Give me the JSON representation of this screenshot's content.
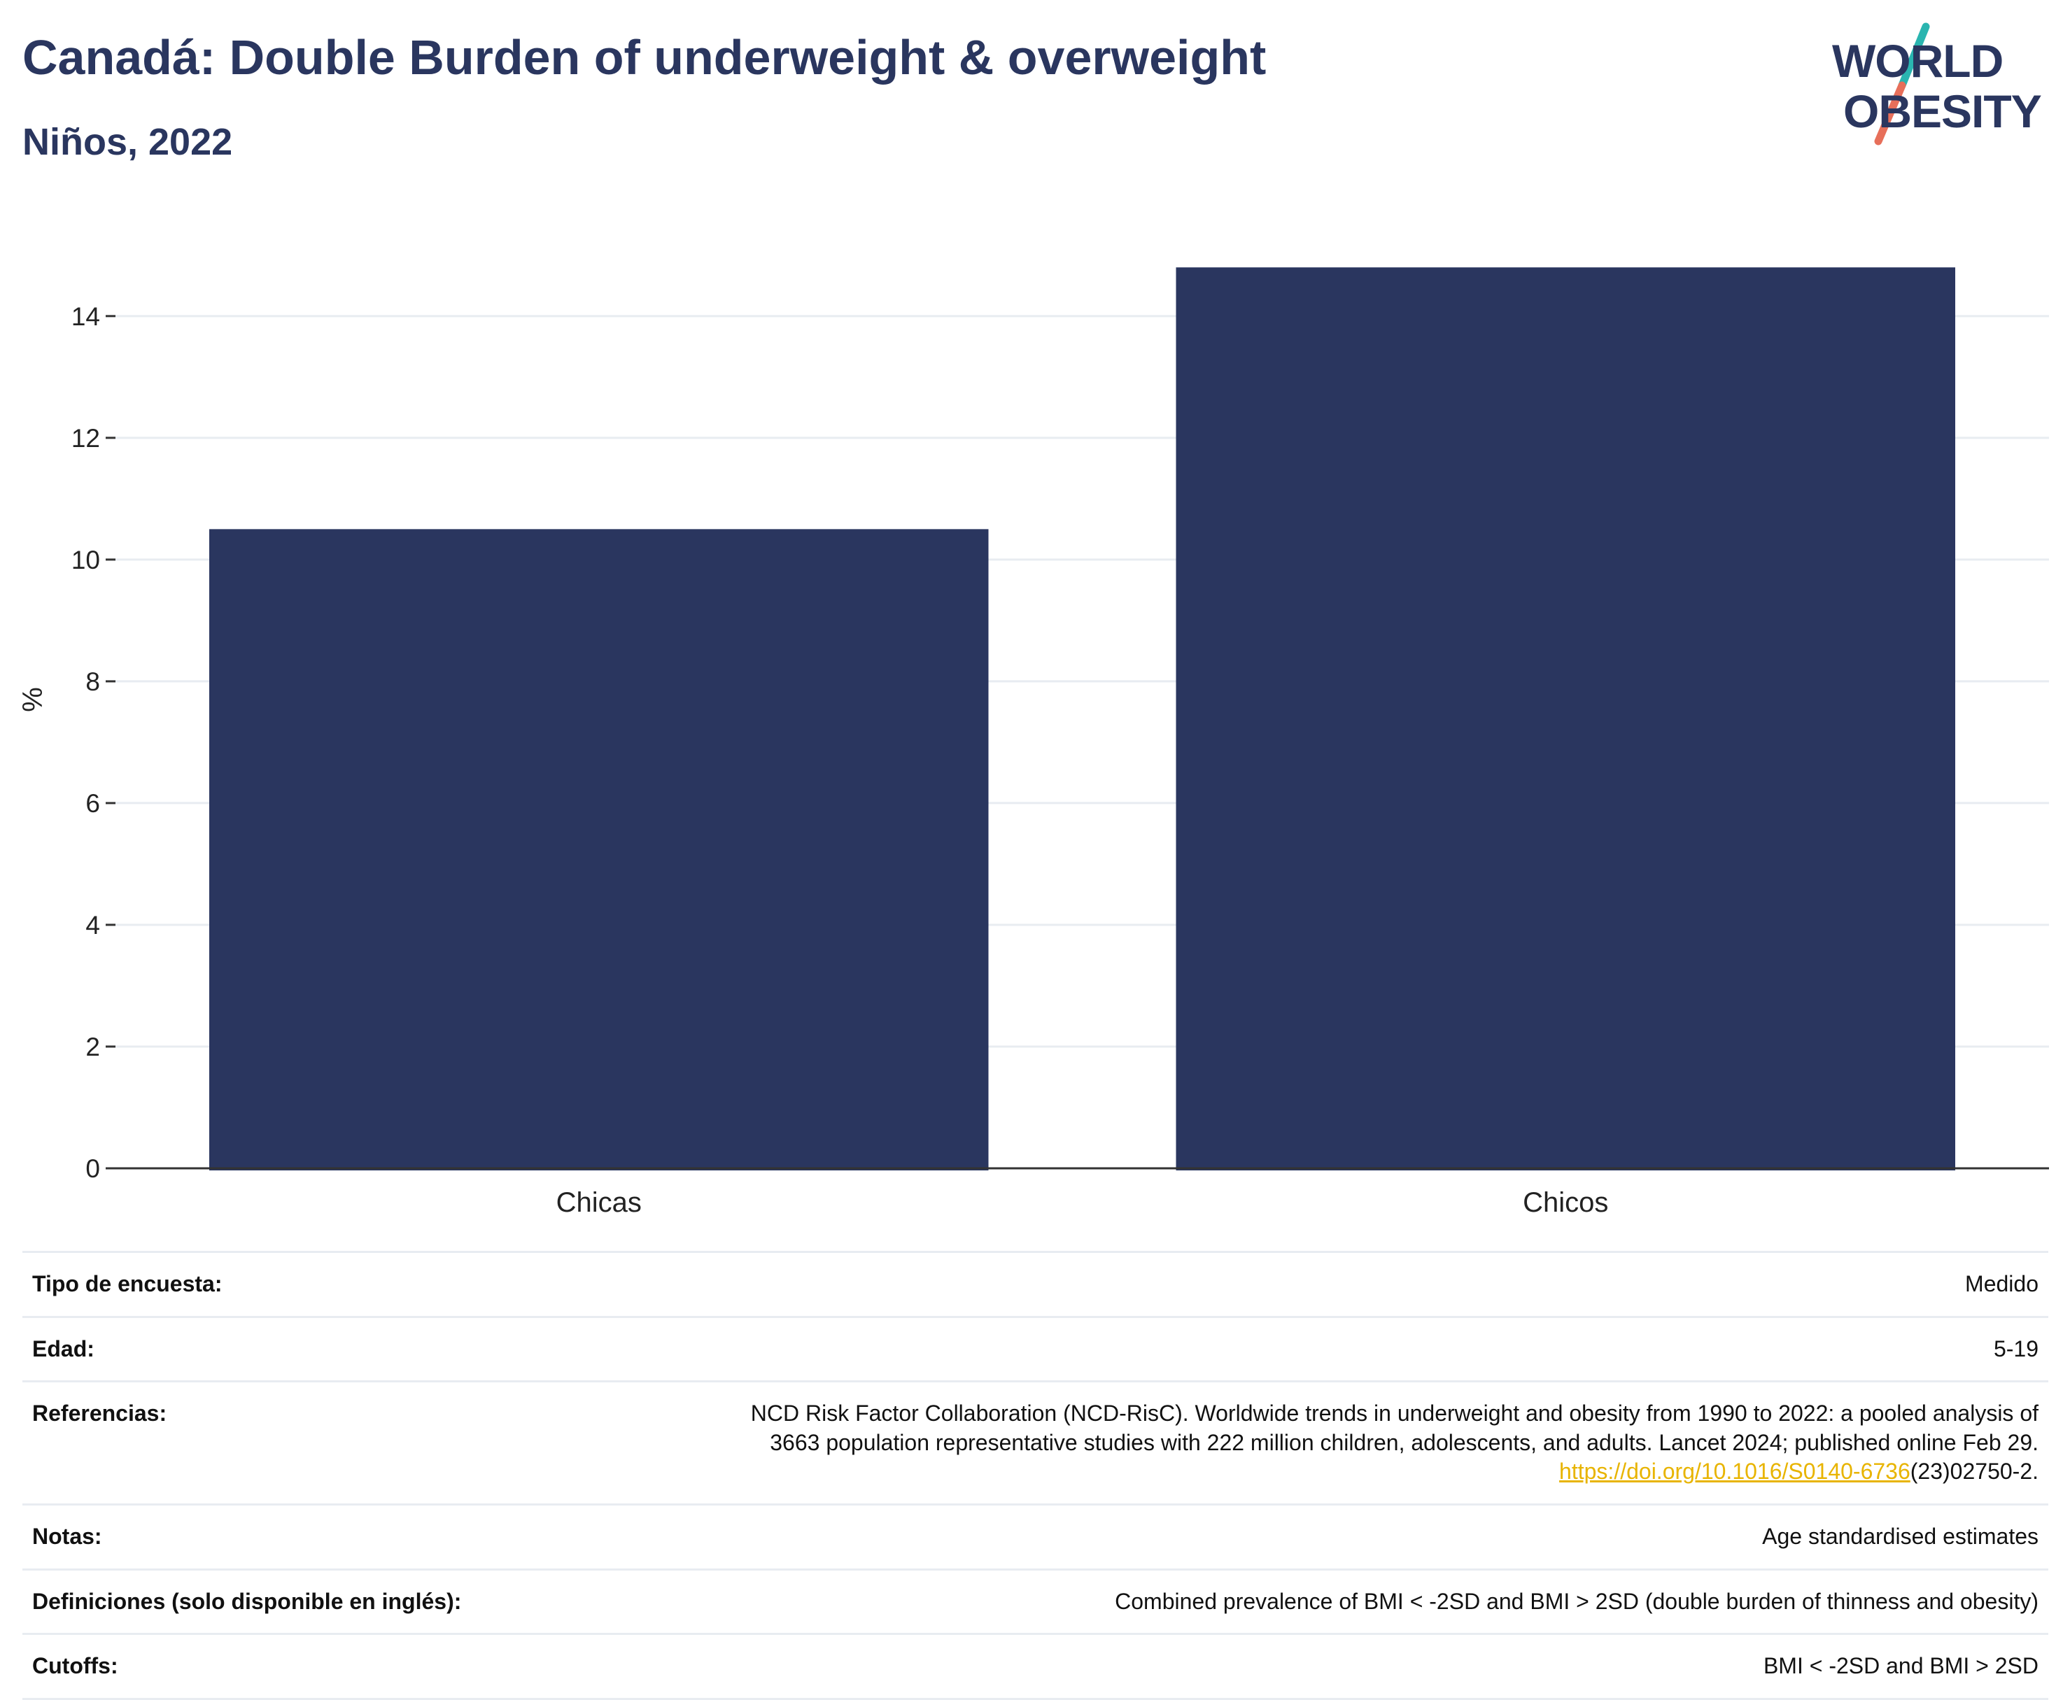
{
  "header": {
    "title": "Canadá: Double Burden of underweight & overweight",
    "subtitle": "Niños, 2022"
  },
  "logo": {
    "line1": "WORLD",
    "line2": "OBESITY",
    "text_color": "#2a365f",
    "slash_top_color": "#2ab5b0",
    "slash_bottom_color": "#e76f5a"
  },
  "colors": {
    "bar": "#2a365f",
    "grid": "#e8ecf1",
    "axis": "#333333",
    "link": "#e8b400"
  },
  "chart_data": {
    "type": "bar",
    "categories": [
      "Chicas",
      "Chicos"
    ],
    "values": [
      10.5,
      14.8
    ],
    "ylabel": "%",
    "xlabel": "",
    "ylim": [
      0,
      15.4
    ],
    "yticks": [
      0,
      2,
      4,
      6,
      8,
      10,
      12,
      14
    ],
    "grid": true,
    "legend": "none"
  },
  "metadata": {
    "rows": [
      {
        "label": "Tipo de encuesta:",
        "value": "Medido"
      },
      {
        "label": "Edad:",
        "value": "5-19"
      },
      {
        "label": "Referencias:",
        "value_line1": "NCD Risk Factor Collaboration (NCD-RisC). Worldwide trends in underweight and obesity from 1990 to 2022: a pooled analysis of",
        "value_line2": "3663 population representative studies with 222 million children, adolescents, and adults. Lancet 2024; published online Feb 29.",
        "link_text": "https://doi.org/10.1016/S0140-6736",
        "link_suffix": "(23)02750-2."
      },
      {
        "label": "Notas:",
        "value": "Age standardised estimates"
      },
      {
        "label": "Definiciones (solo disponible en inglés):",
        "value": "Combined prevalence of BMI < -2SD and BMI > 2SD (double burden of thinness and obesity)"
      },
      {
        "label": "Cutoffs:",
        "value": "BMI < -2SD and BMI > 2SD"
      }
    ]
  }
}
